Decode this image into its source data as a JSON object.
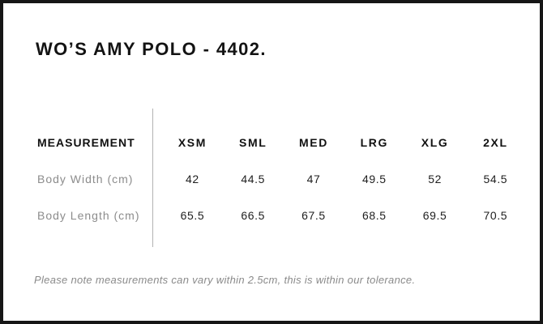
{
  "chart_data": {
    "type": "table",
    "title": "WO’S AMY POLO - 4402.",
    "columns": [
      "MEASUREMENT",
      "XSM",
      "SML",
      "MED",
      "LRG",
      "XLG",
      "2XL"
    ],
    "rows": [
      {
        "label": "Body Width (cm)",
        "values": [
          42,
          44.5,
          47,
          49.5,
          52,
          54.5
        ]
      },
      {
        "label": "Body Length (cm)",
        "values": [
          65.5,
          66.5,
          67.5,
          68.5,
          69.5,
          70.5
        ]
      }
    ],
    "note": "Please note measurements can vary within 2.5cm, this is within our tolerance.",
    "layout": {
      "label_column_alignment": "left",
      "value_alignment": "center",
      "divider": "vertical-between-label-and-sizes"
    }
  },
  "colors": {
    "frame_border": "#161616",
    "heading_text": "#111111",
    "value_text": "#1e1e1e",
    "muted_label_text": "#8c8c8c",
    "divider_line": "#b3b3b3",
    "background": "#ffffff"
  }
}
